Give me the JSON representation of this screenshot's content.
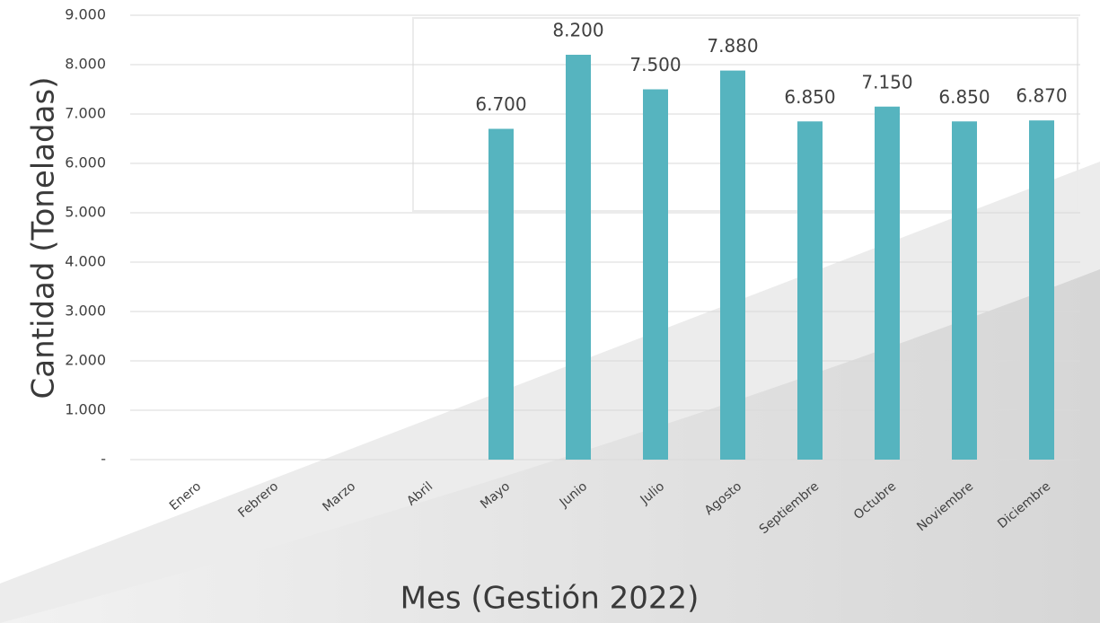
{
  "chart_data": {
    "type": "bar",
    "x_label": "Mes (Gestión 2022)",
    "y_label": "Cantidad (Toneladas)",
    "categories": [
      "Enero",
      "Febrero",
      "Marzo",
      "Abril",
      "Mayo",
      "Junio",
      "Julio",
      "Agosto",
      "Septiembre",
      "Octubre",
      "Noviembre",
      "Diciembre"
    ],
    "values": [
      null,
      null,
      null,
      null,
      6700,
      8200,
      7500,
      7880,
      6850,
      7150,
      6850,
      6870
    ],
    "value_labels": [
      null,
      null,
      null,
      null,
      "6.700",
      "8.200",
      "7.500",
      "7.880",
      "6.850",
      "7.150",
      "6.850",
      "6.870"
    ],
    "color": "#56b4bf",
    "ylim": [
      0,
      9000
    ],
    "yticks": [
      {
        "value": 0,
        "label": "-"
      },
      {
        "value": 1000,
        "label": "1.000"
      },
      {
        "value": 2000,
        "label": "2.000"
      },
      {
        "value": 3000,
        "label": "3.000"
      },
      {
        "value": 4000,
        "label": "4.000"
      },
      {
        "value": 5000,
        "label": "5.000"
      },
      {
        "value": 6000,
        "label": "6.000"
      },
      {
        "value": 7000,
        "label": "7.000"
      },
      {
        "value": 8000,
        "label": "8.000"
      },
      {
        "value": 9000,
        "label": "9.000"
      }
    ],
    "grid": true
  }
}
